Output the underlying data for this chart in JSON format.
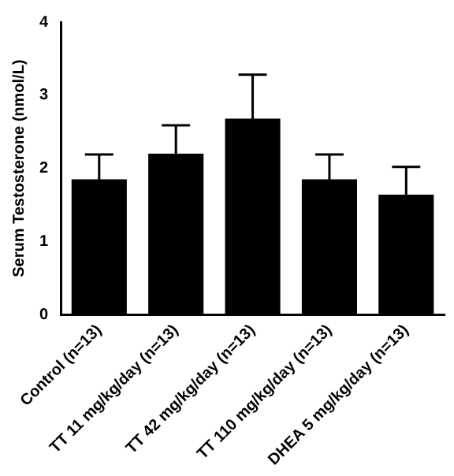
{
  "chart_data": {
    "type": "bar",
    "ylabel": "Serum Testosterone (nmol/L)",
    "categories": [
      "Control (n=13)",
      "TT 11 mg/kg/day (n=13)",
      "TT 42 mg/kg/day (n=13)",
      "TT 110 mg/kg/day (n=13)",
      "DHEA 5 mg/kg/day (n=13)"
    ],
    "values": [
      1.85,
      2.2,
      2.68,
      1.85,
      1.64
    ],
    "errors": [
      0.34,
      0.39,
      0.6,
      0.34,
      0.38
    ],
    "color": "#000000",
    "ylim": [
      0,
      4
    ],
    "yticks": [
      0,
      1,
      2,
      3,
      4
    ],
    "grid": false,
    "legend": false
  }
}
